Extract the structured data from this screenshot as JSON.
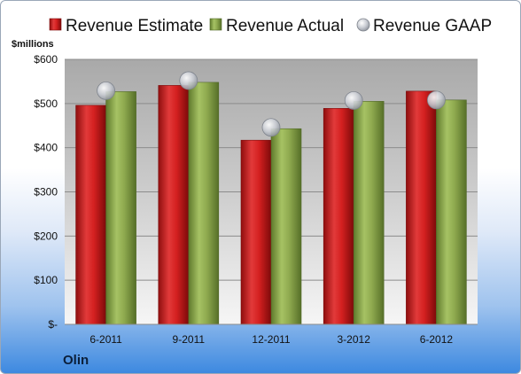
{
  "chart_data": {
    "type": "bar",
    "unit_label": "$millions",
    "company": "Olin",
    "categories": [
      "6-2011",
      "9-2011",
      "12-2011",
      "3-2012",
      "6-2012"
    ],
    "series": [
      {
        "name": "Revenue Estimate",
        "kind": "bar",
        "color": "#d42020",
        "values": [
          496,
          541,
          417,
          489,
          528
        ]
      },
      {
        "name": "Revenue Actual",
        "kind": "bar",
        "color": "#8faa4f",
        "values": [
          527,
          548,
          443,
          505,
          508
        ]
      },
      {
        "name": "Revenue GAAP",
        "kind": "marker",
        "color": "#c9ccd3",
        "values": [
          529,
          552,
          446,
          507,
          508
        ]
      }
    ],
    "y_ticks": [
      {
        "value": 0,
        "label": "$-"
      },
      {
        "value": 100,
        "label": "$100"
      },
      {
        "value": 200,
        "label": "$200"
      },
      {
        "value": 300,
        "label": "$300"
      },
      {
        "value": 400,
        "label": "$400"
      },
      {
        "value": 500,
        "label": "$500"
      },
      {
        "value": 600,
        "label": "$600"
      }
    ],
    "ylim": [
      0,
      600
    ],
    "grid": true,
    "legend_position": "top"
  }
}
